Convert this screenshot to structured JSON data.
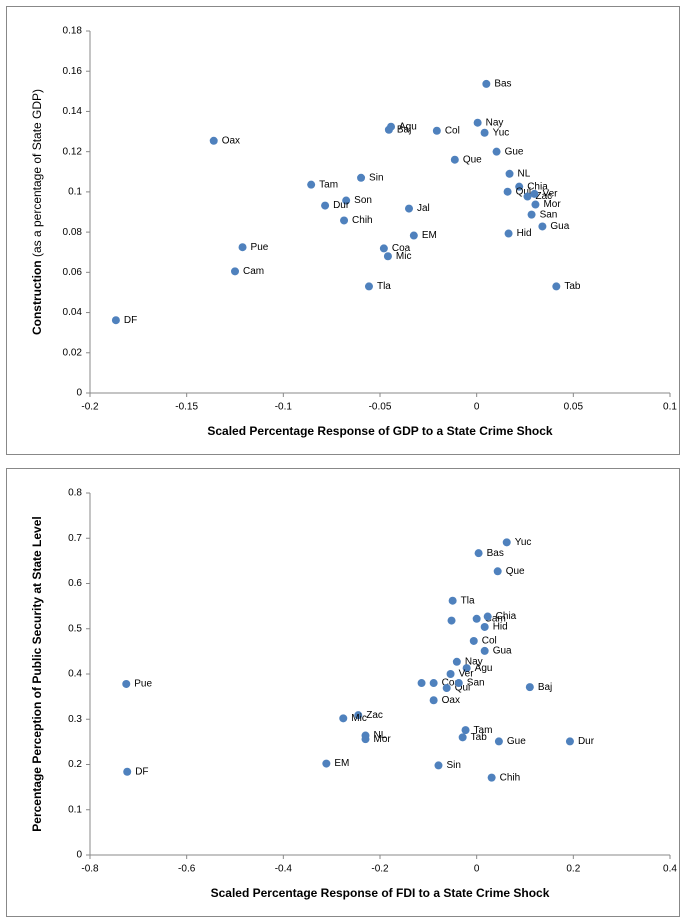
{
  "chart_data": [
    {
      "type": "scatter",
      "y_label": "Construction",
      "y_label_note": "(as a percentage of State GDP)",
      "x_label": "Scaled Percentage Response of GDP to a State Crime Shock",
      "color": "#4f81bd",
      "xlim": [
        -0.2,
        0.1
      ],
      "xticks": [
        -0.2,
        -0.15,
        -0.1,
        -0.05,
        0,
        0.05,
        0.1
      ],
      "ylim": [
        0,
        0.18
      ],
      "yticks": [
        0,
        0.02,
        0.04,
        0.06,
        0.08,
        0.1,
        0.12,
        0.14,
        0.16,
        0.18
      ],
      "point_labels": [
        "Bas",
        "Nay",
        "Agu",
        "Baj",
        "Col",
        "Yuc",
        "Oax",
        "Gue",
        "Que",
        "NL",
        "Sin",
        "Tam",
        "Chia",
        "Qui",
        "Zac",
        "Ver",
        "Son",
        "Mor",
        "Dur",
        "Jal",
        "San",
        "Chih",
        "Gua",
        "Hid",
        "EM",
        "Pue",
        "Coa",
        "Mic",
        "Cam",
        "Tla",
        "Tab",
        "DF"
      ],
      "x": [
        0.005,
        0.0005,
        -0.0443,
        -0.0454,
        -0.0206,
        0.0041,
        -0.136,
        0.0103,
        -0.0113,
        0.017,
        -0.0598,
        -0.0856,
        0.022,
        0.016,
        0.0263,
        0.0299,
        -0.0675,
        0.0304,
        -0.0784,
        -0.035,
        0.0284,
        -0.0686,
        0.034,
        0.0165,
        -0.0325,
        -0.1211,
        -0.048,
        -0.0459,
        -0.125,
        -0.0557,
        0.0412,
        -0.1866
      ],
      "values": [
        0.1537,
        0.1344,
        0.1324,
        0.1309,
        0.1304,
        0.1294,
        0.1254,
        0.12,
        0.116,
        0.109,
        0.107,
        0.1036,
        0.1026,
        0.1001,
        0.0977,
        0.099,
        0.0957,
        0.0937,
        0.0932,
        0.0917,
        0.0887,
        0.0858,
        0.0828,
        0.0793,
        0.0783,
        0.0725,
        0.0719,
        0.068,
        0.0605,
        0.053,
        0.053,
        0.0362
      ]
    },
    {
      "type": "scatter",
      "y_label": "Percentage Perception of Public Security at State Level",
      "x_label": "Scaled Percentage Response of FDI to a State Crime Shock",
      "color": "#4f81bd",
      "xlim": [
        -0.8,
        0.4
      ],
      "xticks": [
        -0.8,
        -0.6,
        -0.4,
        -0.2,
        0,
        0.2,
        0.4
      ],
      "ylim": [
        0,
        0.8
      ],
      "yticks": [
        0,
        0.1,
        0.2,
        0.3,
        0.4,
        0.5,
        0.6,
        0.7,
        0.8
      ],
      "point_labels": [
        "Yuc",
        "Bas",
        "Que",
        "Tla",
        null,
        "Cam",
        "Chia",
        "Hid",
        "Col",
        "Gua",
        "Nay",
        "Agu",
        "Ver",
        null,
        "Coa",
        "Qui",
        "San",
        "Oax",
        "Pue",
        "Baj",
        "Zac",
        "Mic",
        "NL",
        "Mor",
        "Tam",
        "Tab",
        "Gue",
        "Dur",
        "EM",
        "Sin",
        "Chih",
        "DF"
      ],
      "x": [
        0.0622,
        0.004,
        0.0435,
        -0.0497,
        -0.052,
        0,
        0.0228,
        0.0166,
        -0.006,
        0.0166,
        -0.041,
        -0.0207,
        -0.054,
        -0.114,
        -0.089,
        -0.062,
        -0.037,
        -0.089,
        -0.725,
        0.11,
        -0.245,
        -0.276,
        -0.23,
        -0.23,
        -0.023,
        -0.029,
        0.046,
        0.193,
        -0.311,
        -0.079,
        0.031,
        -0.723
      ],
      "values": [
        0.691,
        0.667,
        0.627,
        0.562,
        0.518,
        0.522,
        0.527,
        0.504,
        0.473,
        0.451,
        0.427,
        0.413,
        0.4,
        0.38,
        0.38,
        0.369,
        0.38,
        0.342,
        0.378,
        0.371,
        0.309,
        0.302,
        0.264,
        0.256,
        0.276,
        0.26,
        0.251,
        0.251,
        0.202,
        0.198,
        0.171,
        0.184
      ]
    }
  ]
}
